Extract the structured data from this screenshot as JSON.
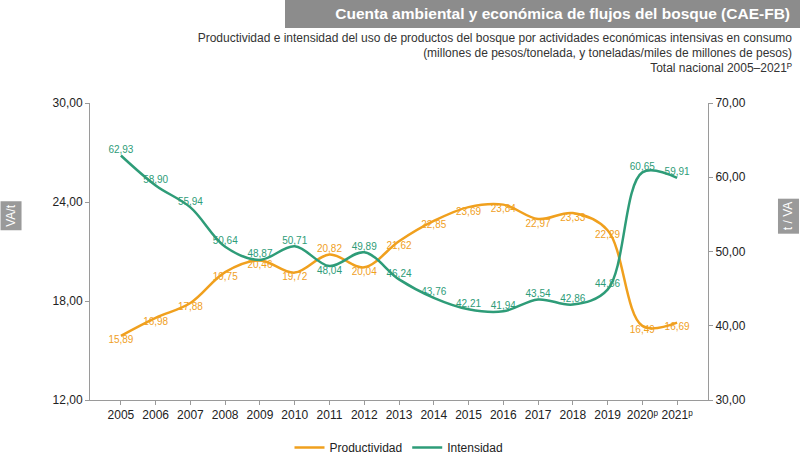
{
  "chart_data": {
    "type": "line",
    "title": "Cuenta ambiental y económica de flujos del bosque (CAE-FB)",
    "subtitle": [
      "Productividad e intensidad del uso de productos del bosque por actividades económicas intensivas en consumo",
      "(millones de pesos/tonelada, y toneladas/miles de millones de pesos)",
      "Total nacional  2005–2021ᴾ"
    ],
    "categories": [
      "2005",
      "2006",
      "2007",
      "2008",
      "2009",
      "2010",
      "2011",
      "2012",
      "2013",
      "2014",
      "2015",
      "2016",
      "2017",
      "2018",
      "2019",
      "2020ᵖ",
      "2021ᵖ"
    ],
    "ylabel": "VA/t",
    "y2label": "t / VA",
    "ylim": [
      12,
      30
    ],
    "yticks": [
      {
        "value": 12,
        "label": "12,00"
      },
      {
        "value": 18,
        "label": "18,00"
      },
      {
        "value": 24,
        "label": "24,00"
      },
      {
        "value": 30,
        "label": "30,00"
      }
    ],
    "y2lim": [
      30,
      70
    ],
    "y2ticks": [
      {
        "value": 30,
        "label": "30,00"
      },
      {
        "value": 40,
        "label": "40,00"
      },
      {
        "value": 50,
        "label": "50,00"
      },
      {
        "value": 60,
        "label": "60,00"
      },
      {
        "value": 70,
        "label": "70,00"
      }
    ],
    "grid": false,
    "legend": "bottom",
    "data_labels": true,
    "series": [
      {
        "name": "Productividad",
        "color": "#f0a01e",
        "line_style": "solid",
        "values": [
          15.89,
          16.98,
          17.88,
          19.75,
          20.46,
          19.72,
          20.82,
          20.04,
          21.62,
          22.85,
          23.69,
          23.84,
          22.97,
          23.33,
          22.29,
          16.49,
          16.69
        ],
        "value_labels": [
          "15,89",
          "16,98",
          "17,88",
          "19,75",
          "20,46",
          "19,72",
          "20,82",
          "20,04",
          "21,62",
          "22,85",
          "23,69",
          "23,84",
          "22,97",
          "23,33",
          "22,29",
          "16,49",
          "16,69"
        ]
      },
      {
        "name": "Intensidad",
        "color": "#2e9c78",
        "line_style": "solid",
        "axis": "y2",
        "values": [
          62.93,
          58.9,
          55.94,
          50.64,
          48.87,
          50.71,
          48.04,
          49.89,
          46.24,
          43.76,
          42.21,
          41.94,
          43.54,
          42.86,
          44.86,
          60.65,
          59.91
        ],
        "value_labels": [
          "62,93",
          "58,90",
          "55,94",
          "50,64",
          "48,87",
          "50,71",
          "48,04",
          "49,89",
          "46,24",
          "43,76",
          "42,21",
          "41,94",
          "43,54",
          "42,86",
          "44,86",
          "60,65",
          "59,91"
        ]
      }
    ]
  }
}
